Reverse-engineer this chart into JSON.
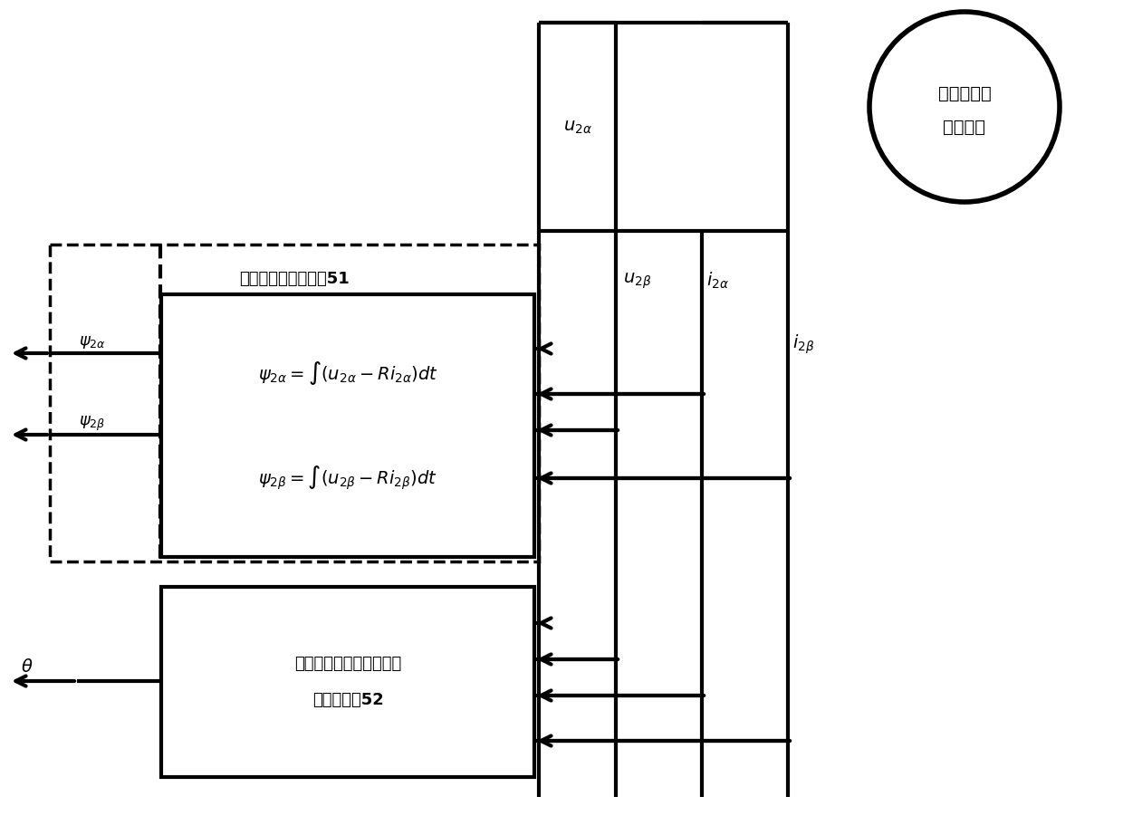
{
  "bg_color": "#ffffff",
  "line_color": "#000000",
  "fig_width": 12.4,
  "fig_height": 9.22,
  "motor_text_line1": "无轴承永磁",
  "motor_text_line2": "同步电机",
  "observer_label": "转矩绕组磁链观测器51",
  "eq1": "$\\psi_{2\\alpha} = \\int(u_{2\\alpha} - Ri_{2\\alpha})dt$",
  "eq2": "$\\psi_{2\\beta} = \\int(u_{2\\beta} - Ri_{2\\beta})dt$",
  "pll_label_line1": "基于锁相环的滑模转子角",
  "pll_label_line2": "位置观测器52",
  "label_u2a": "$u_{2\\alpha}$",
  "label_u2b": "$u_{2\\beta}$",
  "label_i2a": "$i_{2\\alpha}$",
  "label_i2b": "$i_{2\\beta}$",
  "label_psi2a": "$\\psi_{2\\alpha}$",
  "label_psi2b": "$\\psi_{2\\beta}$",
  "label_theta": "$\\theta$"
}
